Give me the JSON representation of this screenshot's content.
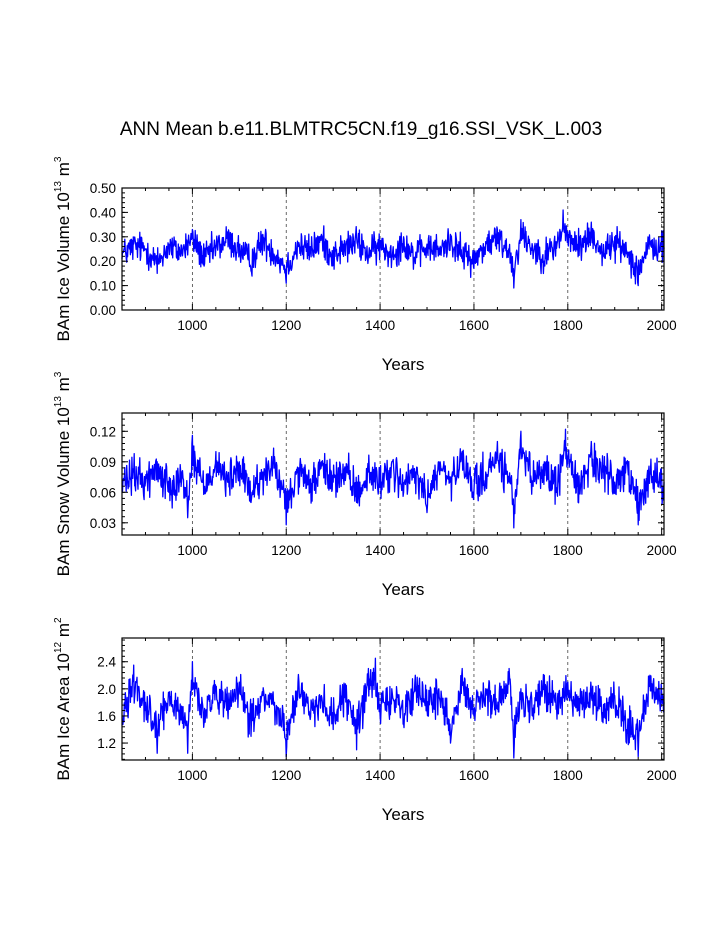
{
  "figure": {
    "title": "ANN Mean b.e11.BLMTRC5CN.f19_g16.SSI_VSK_L.003"
  },
  "chart_data": [
    {
      "type": "line",
      "title": "",
      "xlabel": "Years",
      "ylabel_parts": [
        "BAm Ice Volume 10",
        "13",
        " m",
        "3"
      ],
      "xlim": [
        850,
        2005
      ],
      "ylim": [
        0,
        0.5
      ],
      "x_ticks": [
        1000,
        1200,
        1400,
        1600,
        1800,
        2000
      ],
      "x_tick_labels": [
        "1000",
        "1200",
        "1400",
        "1600",
        "1800",
        "2000"
      ],
      "y_ticks": [
        0,
        0.1,
        0.2,
        0.3,
        0.4,
        0.5
      ],
      "y_tick_labels": [
        "0.00",
        "0.10",
        "0.20",
        "0.30",
        "0.40",
        "0.50"
      ],
      "grid": "vertical-dashed",
      "series": [
        {
          "color": "#0000ff",
          "mean": 0.25,
          "amplitude": 0.055,
          "x_start": 850,
          "x_end": 2005,
          "values": [
            [
              850,
              0.21
            ],
            [
              875,
              0.27
            ],
            [
              900,
              0.25
            ],
            [
              925,
              0.15
            ],
            [
              950,
              0.27
            ],
            [
              975,
              0.22
            ],
            [
              1000,
              0.33
            ],
            [
              1025,
              0.18
            ],
            [
              1050,
              0.26
            ],
            [
              1075,
              0.32
            ],
            [
              1100,
              0.24
            ],
            [
              1125,
              0.16
            ],
            [
              1150,
              0.31
            ],
            [
              1175,
              0.22
            ],
            [
              1200,
              0.11
            ],
            [
              1225,
              0.27
            ],
            [
              1250,
              0.24
            ],
            [
              1275,
              0.31
            ],
            [
              1300,
              0.2
            ],
            [
              1325,
              0.26
            ],
            [
              1350,
              0.3
            ],
            [
              1375,
              0.22
            ],
            [
              1400,
              0.27
            ],
            [
              1425,
              0.21
            ],
            [
              1450,
              0.3
            ],
            [
              1475,
              0.19
            ],
            [
              1500,
              0.27
            ],
            [
              1525,
              0.24
            ],
            [
              1550,
              0.31
            ],
            [
              1575,
              0.22
            ],
            [
              1600,
              0.17
            ],
            [
              1625,
              0.28
            ],
            [
              1650,
              0.33
            ],
            [
              1675,
              0.24
            ],
            [
              1685,
              0.09
            ],
            [
              1700,
              0.37
            ],
            [
              1725,
              0.26
            ],
            [
              1750,
              0.2
            ],
            [
              1775,
              0.28
            ],
            [
              1790,
              0.41
            ],
            [
              1800,
              0.32
            ],
            [
              1825,
              0.27
            ],
            [
              1850,
              0.36
            ],
            [
              1875,
              0.22
            ],
            [
              1900,
              0.3
            ],
            [
              1925,
              0.23
            ],
            [
              1950,
              0.1
            ],
            [
              1975,
              0.27
            ],
            [
              2005,
              0.25
            ]
          ]
        }
      ]
    },
    {
      "type": "line",
      "title": "",
      "xlabel": "Years",
      "ylabel_parts": [
        "BAm Snow Volume 10",
        "13",
        " m",
        "3"
      ],
      "xlim": [
        850,
        2005
      ],
      "ylim": [
        0.018,
        0.138
      ],
      "x_ticks": [
        1000,
        1200,
        1400,
        1600,
        1800,
        2000
      ],
      "x_tick_labels": [
        "1000",
        "1200",
        "1400",
        "1600",
        "1800",
        "2000"
      ],
      "y_ticks": [
        0.03,
        0.06,
        0.09,
        0.12
      ],
      "y_tick_labels": [
        "0.03",
        "0.06",
        "0.09",
        "0.12"
      ],
      "grid": "vertical-dashed",
      "series": [
        {
          "color": "#0000ff",
          "mean": 0.073,
          "amplitude": 0.016,
          "x_start": 850,
          "x_end": 2005,
          "values": [
            [
              850,
              0.06
            ],
            [
              875,
              0.08
            ],
            [
              900,
              0.07
            ],
            [
              925,
              0.09
            ],
            [
              950,
              0.06
            ],
            [
              975,
              0.08
            ],
            [
              990,
              0.035
            ],
            [
              1000,
              0.116
            ],
            [
              1025,
              0.06
            ],
            [
              1050,
              0.1
            ],
            [
              1075,
              0.07
            ],
            [
              1100,
              0.09
            ],
            [
              1125,
              0.05
            ],
            [
              1150,
              0.08
            ],
            [
              1175,
              0.095
            ],
            [
              1200,
              0.028
            ],
            [
              1225,
              0.08
            ],
            [
              1250,
              0.06
            ],
            [
              1275,
              0.09
            ],
            [
              1300,
              0.07
            ],
            [
              1325,
              0.085
            ],
            [
              1350,
              0.05
            ],
            [
              1375,
              0.08
            ],
            [
              1400,
              0.07
            ],
            [
              1425,
              0.09
            ],
            [
              1450,
              0.06
            ],
            [
              1475,
              0.08
            ],
            [
              1500,
              0.04
            ],
            [
              1525,
              0.09
            ],
            [
              1550,
              0.07
            ],
            [
              1575,
              0.1
            ],
            [
              1600,
              0.06
            ],
            [
              1625,
              0.08
            ],
            [
              1650,
              0.11
            ],
            [
              1675,
              0.07
            ],
            [
              1685,
              0.025
            ],
            [
              1700,
              0.12
            ],
            [
              1725,
              0.07
            ],
            [
              1750,
              0.09
            ],
            [
              1775,
              0.06
            ],
            [
              1795,
              0.122
            ],
            [
              1810,
              0.09
            ],
            [
              1825,
              0.06
            ],
            [
              1850,
              0.11
            ],
            [
              1875,
              0.08
            ],
            [
              1900,
              0.07
            ],
            [
              1925,
              0.09
            ],
            [
              1950,
              0.028
            ],
            [
              1975,
              0.08
            ],
            [
              2005,
              0.07
            ]
          ]
        }
      ]
    },
    {
      "type": "line",
      "title": "",
      "xlabel": "Years",
      "ylabel_parts": [
        "BAm Ice Area 10",
        "12",
        " m",
        "2"
      ],
      "xlim": [
        850,
        2005
      ],
      "ylim": [
        0.95,
        2.75
      ],
      "x_ticks": [
        1000,
        1200,
        1400,
        1600,
        1800,
        2000
      ],
      "x_tick_labels": [
        "1000",
        "1200",
        "1400",
        "1600",
        "1800",
        "2000"
      ],
      "y_ticks": [
        1.2,
        1.6,
        2.0,
        2.4
      ],
      "y_tick_labels": [
        "1.2",
        "1.6",
        "2.0",
        "2.4"
      ],
      "grid": "vertical-dashed",
      "series": [
        {
          "color": "#0000ff",
          "mean": 1.8,
          "amplitude": 0.22,
          "x_start": 850,
          "x_end": 2005,
          "values": [
            [
              850,
              1.5
            ],
            [
              875,
              2.35
            ],
            [
              900,
              1.8
            ],
            [
              925,
              1.05
            ],
            [
              950,
              1.9
            ],
            [
              975,
              1.6
            ],
            [
              990,
              1.05
            ],
            [
              1000,
              2.4
            ],
            [
              1025,
              1.5
            ],
            [
              1050,
              2.0
            ],
            [
              1075,
              1.7
            ],
            [
              1100,
              2.1
            ],
            [
              1125,
              1.3
            ],
            [
              1150,
              1.9
            ],
            [
              1175,
              1.8
            ],
            [
              1200,
              1.0
            ],
            [
              1225,
              2.1
            ],
            [
              1250,
              1.6
            ],
            [
              1275,
              1.9
            ],
            [
              1300,
              1.4
            ],
            [
              1325,
              2.0
            ],
            [
              1350,
              1.1
            ],
            [
              1375,
              2.3
            ],
            [
              1390,
              2.45
            ],
            [
              1400,
              1.6
            ],
            [
              1425,
              2.0
            ],
            [
              1450,
              1.5
            ],
            [
              1475,
              2.2
            ],
            [
              1500,
              1.7
            ],
            [
              1525,
              2.0
            ],
            [
              1550,
              1.2
            ],
            [
              1575,
              2.3
            ],
            [
              1600,
              1.6
            ],
            [
              1625,
              2.0
            ],
            [
              1650,
              1.7
            ],
            [
              1675,
              2.3
            ],
            [
              1685,
              0.98
            ],
            [
              1700,
              2.0
            ],
            [
              1725,
              1.6
            ],
            [
              1750,
              2.2
            ],
            [
              1775,
              1.7
            ],
            [
              1800,
              2.1
            ],
            [
              1825,
              1.6
            ],
            [
              1850,
              2.0
            ],
            [
              1875,
              1.5
            ],
            [
              1900,
              1.9
            ],
            [
              1925,
              1.2
            ],
            [
              1950,
              1.0
            ],
            [
              1975,
              2.2
            ],
            [
              2005,
              1.8
            ]
          ]
        }
      ]
    }
  ]
}
